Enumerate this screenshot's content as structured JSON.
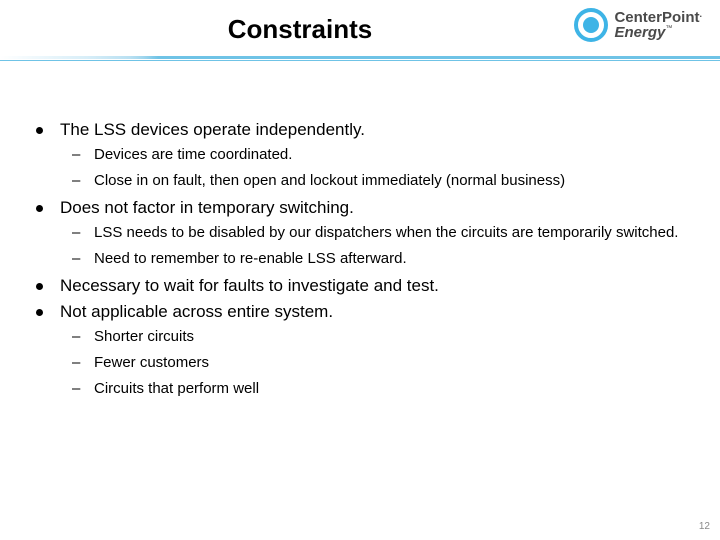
{
  "title": "Constraints",
  "logo": {
    "line1": "CenterPoint",
    "dot": ".",
    "line2_italic": "Energy",
    "tm": "™"
  },
  "bullets": [
    {
      "text": "The LSS devices operate independently.",
      "subs": [
        "Devices are time coordinated.",
        "Close in on fault, then open and lockout immediately (normal business)"
      ]
    },
    {
      "text": "Does not factor in temporary switching.",
      "subs": [
        "LSS needs to be disabled by our dispatchers when the circuits are temporarily switched.",
        "Need to remember to re-enable LSS afterward."
      ]
    },
    {
      "text": "Necessary to wait for faults to investigate and test.",
      "subs": []
    },
    {
      "text": "Not applicable across entire system.",
      "subs": [
        "Shorter circuits",
        "Fewer customers",
        "Circuits that perform well"
      ]
    }
  ],
  "page_number": "12",
  "colors": {
    "accent": "#6fc3e6",
    "text": "#000000",
    "logo_gray": "#4a4a4a"
  }
}
